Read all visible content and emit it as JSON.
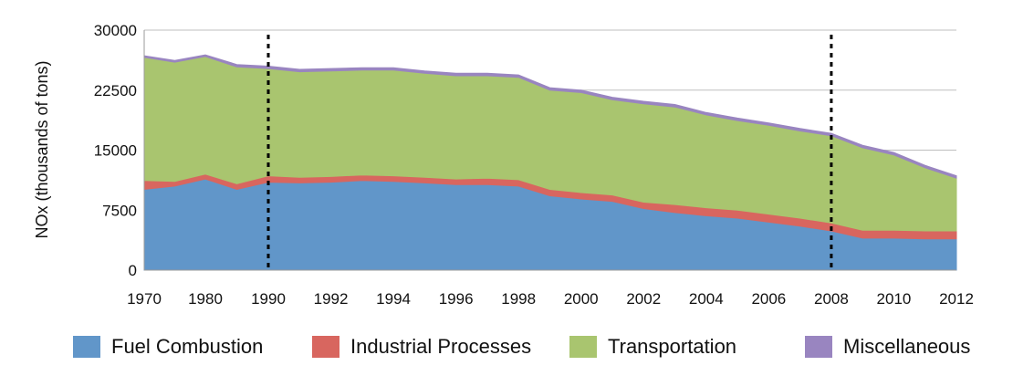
{
  "chart_data": {
    "type": "area",
    "stacked": true,
    "ylabel": "NOx (thousands of tons)",
    "xlabel": "",
    "ylim": [
      0,
      30000
    ],
    "yticks": [
      "0",
      "7500",
      "15000",
      "22500",
      "30000"
    ],
    "xtick_labels": [
      "1970",
      "1980",
      "1990",
      "1992",
      "1994",
      "1996",
      "1998",
      "2000",
      "2002",
      "2004",
      "2006",
      "2008",
      "2010",
      "2012"
    ],
    "grid": "horizontal",
    "legend_position": "bottom",
    "x": [
      "1970",
      "1975",
      "1980",
      "1985",
      "1990",
      "1991",
      "1992",
      "1993",
      "1994",
      "1995",
      "1996",
      "1997",
      "1998",
      "1999",
      "2000",
      "2001",
      "2002",
      "2003",
      "2004",
      "2005",
      "2006",
      "2007",
      "2008",
      "2009",
      "2010",
      "2011",
      "2012"
    ],
    "series": [
      {
        "name": "Fuel Combustion",
        "color": "#6196c9",
        "values": [
          10100,
          10500,
          11400,
          10100,
          11000,
          10900,
          11000,
          11200,
          11100,
          10900,
          10700,
          10700,
          10500,
          9300,
          8900,
          8600,
          7700,
          7200,
          6800,
          6500,
          6000,
          5500,
          4900,
          4000,
          4000,
          3900,
          3900
        ]
      },
      {
        "name": "Industrial Processes",
        "color": "#d8665f",
        "values": [
          1100,
          600,
          600,
          700,
          800,
          700,
          700,
          700,
          700,
          700,
          700,
          800,
          800,
          800,
          800,
          800,
          800,
          1000,
          1000,
          1000,
          1000,
          1000,
          1000,
          1000,
          1000,
          1000,
          1000
        ]
      },
      {
        "name": "Transportation",
        "color": "#a9c56f",
        "values": [
          15400,
          14900,
          14700,
          14600,
          13400,
          13200,
          13200,
          13100,
          13200,
          13000,
          12900,
          12800,
          12800,
          12400,
          12500,
          11900,
          12300,
          12200,
          11600,
          11200,
          11100,
          10900,
          10900,
          10300,
          9400,
          7900,
          6600
        ]
      },
      {
        "name": "Miscellaneous",
        "color": "#9985c0",
        "values": [
          200,
          200,
          200,
          300,
          300,
          300,
          300,
          300,
          300,
          300,
          300,
          300,
          300,
          300,
          300,
          300,
          300,
          300,
          300,
          300,
          300,
          300,
          300,
          300,
          300,
          300,
          300
        ]
      }
    ],
    "annotations": [
      {
        "type": "vline",
        "x": "1990",
        "style": "dashed"
      },
      {
        "type": "vline",
        "x": "2008",
        "style": "dashed"
      }
    ]
  }
}
